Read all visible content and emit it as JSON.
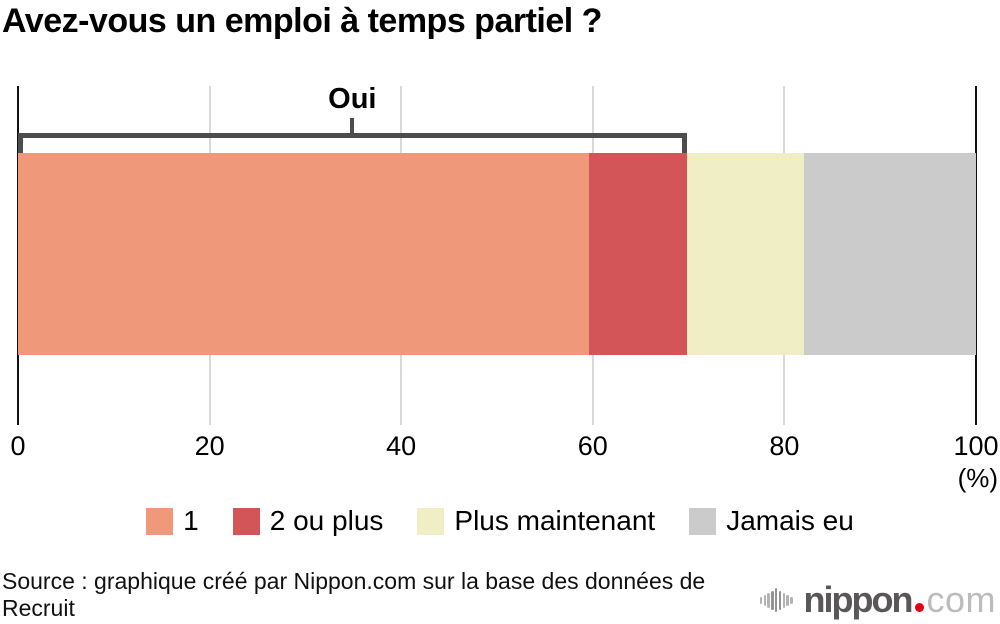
{
  "title": "Avez-vous un emploi à temps partiel ?",
  "chart_data": {
    "type": "bar",
    "orientation": "horizontal-stacked",
    "title": "Avez-vous un emploi à temps partiel ?",
    "series": [
      {
        "name": "1",
        "value": 59.6,
        "color": "#F0987A"
      },
      {
        "name": "2 ou plus",
        "value": 10.2,
        "color": "#D45558"
      },
      {
        "name": "Plus maintenant",
        "value": 12.3,
        "color": "#F0EEC5"
      },
      {
        "name": "Jamais eu",
        "value": 17.9,
        "color": "#CBCBCB"
      }
    ],
    "annotation": {
      "label": "Oui",
      "span_from": 0,
      "span_to": 69.8,
      "color": "#4D4D4D"
    },
    "x_ticks": [
      0,
      20,
      40,
      60,
      80,
      100
    ],
    "xlim": [
      0,
      100
    ],
    "x_unit_label": "(%)",
    "grid": true,
    "gridline_color": "#D9D9D9",
    "axis_edge_color": "#121212",
    "legend_position": "bottom"
  },
  "footer": {
    "source": "Source : graphique créé par Nippon.com sur la base des données de Recruit",
    "logo": {
      "icon": "sound-wave-icon",
      "brand": "nippon",
      "dot": ".",
      "tld": "com",
      "dot_color": "#E60012"
    }
  }
}
